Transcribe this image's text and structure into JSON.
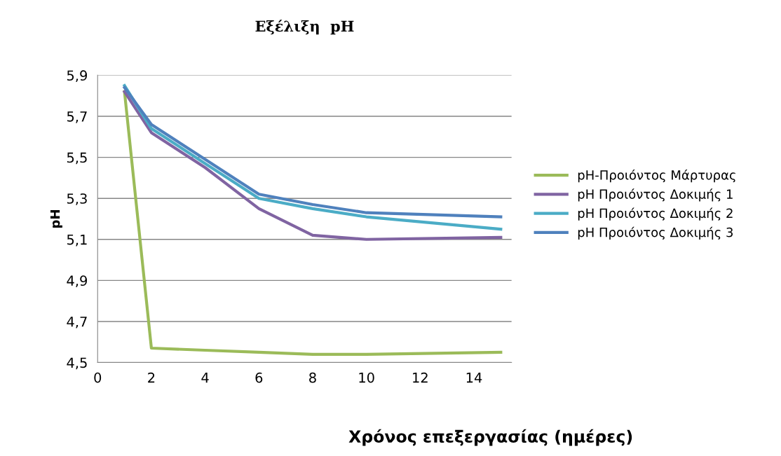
{
  "chart_data": {
    "type": "line",
    "title": "Εξέλιξη  pH",
    "xlabel": "Χρόνος επεξεργασίας (ημέρες)",
    "ylabel": "pH",
    "x": [
      1,
      2,
      4,
      6,
      8,
      10,
      15
    ],
    "series": [
      {
        "name": "pH-Προιόντος Μάρτυρας",
        "color": "#9bbb59",
        "values": [
          5.82,
          4.57,
          4.56,
          4.55,
          4.54,
          4.54,
          4.55
        ]
      },
      {
        "name": "pH Προιόντος Δοκιμής 1",
        "color": "#8064a2",
        "values": [
          5.82,
          5.62,
          5.45,
          5.25,
          5.12,
          5.1,
          5.11
        ]
      },
      {
        "name": "pH Προιόντος Δοκιμής 2",
        "color": "#4bacc6",
        "values": [
          5.85,
          5.64,
          5.47,
          5.3,
          5.25,
          5.21,
          5.15
        ]
      },
      {
        "name": "pH Προιόντος Δοκιμής 3",
        "color": "#4f81bd",
        "values": [
          5.84,
          5.66,
          5.49,
          5.32,
          5.27,
          5.23,
          5.21
        ]
      }
    ],
    "xlim": [
      0,
      15.4
    ],
    "xticks": [
      0,
      2,
      4,
      6,
      8,
      10,
      12,
      14
    ],
    "ylim": [
      4.5,
      5.9
    ],
    "yticks": [
      {
        "value": 4.5,
        "label": "4,5"
      },
      {
        "value": 4.7,
        "label": "4,7"
      },
      {
        "value": 4.9,
        "label": "4,9"
      },
      {
        "value": 5.1,
        "label": "5,1"
      },
      {
        "value": 5.3,
        "label": "5,3"
      },
      {
        "value": 5.5,
        "label": "5,5"
      },
      {
        "value": 5.7,
        "label": "5,7"
      },
      {
        "value": 5.9,
        "label": "5,9"
      }
    ],
    "grid": "y",
    "legend": "right",
    "marker": "none",
    "line_style": "solid"
  }
}
